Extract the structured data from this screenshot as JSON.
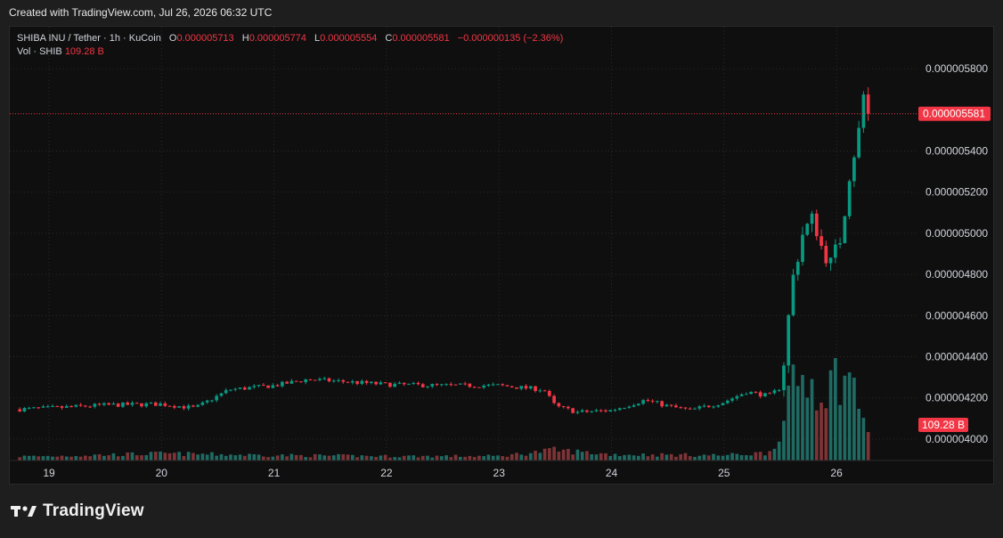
{
  "header": {
    "created_text": "Created with TradingView.com, Jul 26, 2026 06:32 UTC"
  },
  "legend": {
    "symbol": "SHIBA INU / Tether · 1h · KuCoin",
    "open_label": "O",
    "open": "0.000005713",
    "high_label": "H",
    "high": "0.000005774",
    "low_label": "L",
    "low": "0.000005554",
    "close_label": "C",
    "close": "0.000005581",
    "change": "−0.000000135 (−2.36%)",
    "vol_label": "Vol · SHIB",
    "vol_value": "109.28 B"
  },
  "footer": {
    "brand": "TradingView"
  },
  "colors": {
    "up": "#089981",
    "down": "#f23645",
    "vol_up": "#1f6b63",
    "vol_down": "#7e3437",
    "grid": "#2a2a2a",
    "bg": "#0f0f0f"
  },
  "chart_data": {
    "type": "candlestick",
    "title": "SHIBA INU / Tether · 1h · KuCoin",
    "xlabel": "",
    "ylabel": "",
    "ylim": [
      3.9e-06,
      5.9e-06
    ],
    "x_ticks": [
      "19",
      "20",
      "21",
      "22",
      "23",
      "24",
      "25",
      "26"
    ],
    "y_ticks": [
      "0.000005800",
      "0.000005400",
      "0.000005200",
      "0.000005000",
      "0.000004800",
      "0.000004600",
      "0.000004400",
      "0.000004200",
      "0.000004000"
    ],
    "last_price_label": "0.000005581",
    "last_price": 5.581e-06,
    "volume_label": "109.28 B",
    "grid": true,
    "series_anchors": [
      [
        18.0,
        4.145e-06
      ],
      [
        18.5,
        4.14e-06
      ],
      [
        19.0,
        4.15e-06
      ],
      [
        19.5,
        4.165e-06
      ],
      [
        20.0,
        4.17e-06
      ],
      [
        20.3,
        4.15e-06
      ],
      [
        20.6,
        4.24e-06
      ],
      [
        21.0,
        4.26e-06
      ],
      [
        21.3,
        4.29e-06
      ],
      [
        21.6,
        4.28e-06
      ],
      [
        22.0,
        4.265e-06
      ],
      [
        22.5,
        4.26e-06
      ],
      [
        23.0,
        4.26e-06
      ],
      [
        23.2,
        4.25e-06
      ],
      [
        23.4,
        4.24e-06
      ],
      [
        23.5,
        4.16e-06
      ],
      [
        23.7,
        4.13e-06
      ],
      [
        24.0,
        4.14e-06
      ],
      [
        24.3,
        4.19e-06
      ],
      [
        24.5,
        4.16e-06
      ],
      [
        24.7,
        4.14e-06
      ],
      [
        25.0,
        4.18e-06
      ],
      [
        25.2,
        4.23e-06
      ],
      [
        25.4,
        4.21e-06
      ],
      [
        25.5,
        4.25e-06
      ],
      [
        25.55,
        4.45e-06
      ],
      [
        25.6,
        4.75e-06
      ],
      [
        25.7,
        5e-06
      ],
      [
        25.8,
        5.08e-06
      ],
      [
        25.85,
        4.95e-06
      ],
      [
        25.95,
        4.85e-06
      ],
      [
        26.05,
        5e-06
      ],
      [
        26.1,
        5.25e-06
      ],
      [
        26.2,
        5.5e-06
      ],
      [
        26.25,
        5.713e-06
      ],
      [
        26.28,
        5.581e-06
      ]
    ],
    "volume_anchors": [
      [
        18.0,
        0.04
      ],
      [
        19.0,
        0.05
      ],
      [
        20.0,
        0.08
      ],
      [
        21.0,
        0.06
      ],
      [
        22.0,
        0.05
      ],
      [
        23.0,
        0.05
      ],
      [
        23.5,
        0.12
      ],
      [
        24.0,
        0.07
      ],
      [
        25.0,
        0.06
      ],
      [
        25.4,
        0.09
      ],
      [
        25.55,
        0.45
      ],
      [
        25.6,
        0.85
      ],
      [
        25.7,
        0.95
      ],
      [
        25.8,
        0.9
      ],
      [
        25.9,
        0.8
      ],
      [
        26.0,
        1.0
      ],
      [
        26.1,
        0.95
      ],
      [
        26.2,
        0.7
      ],
      [
        26.28,
        0.35
      ]
    ]
  }
}
